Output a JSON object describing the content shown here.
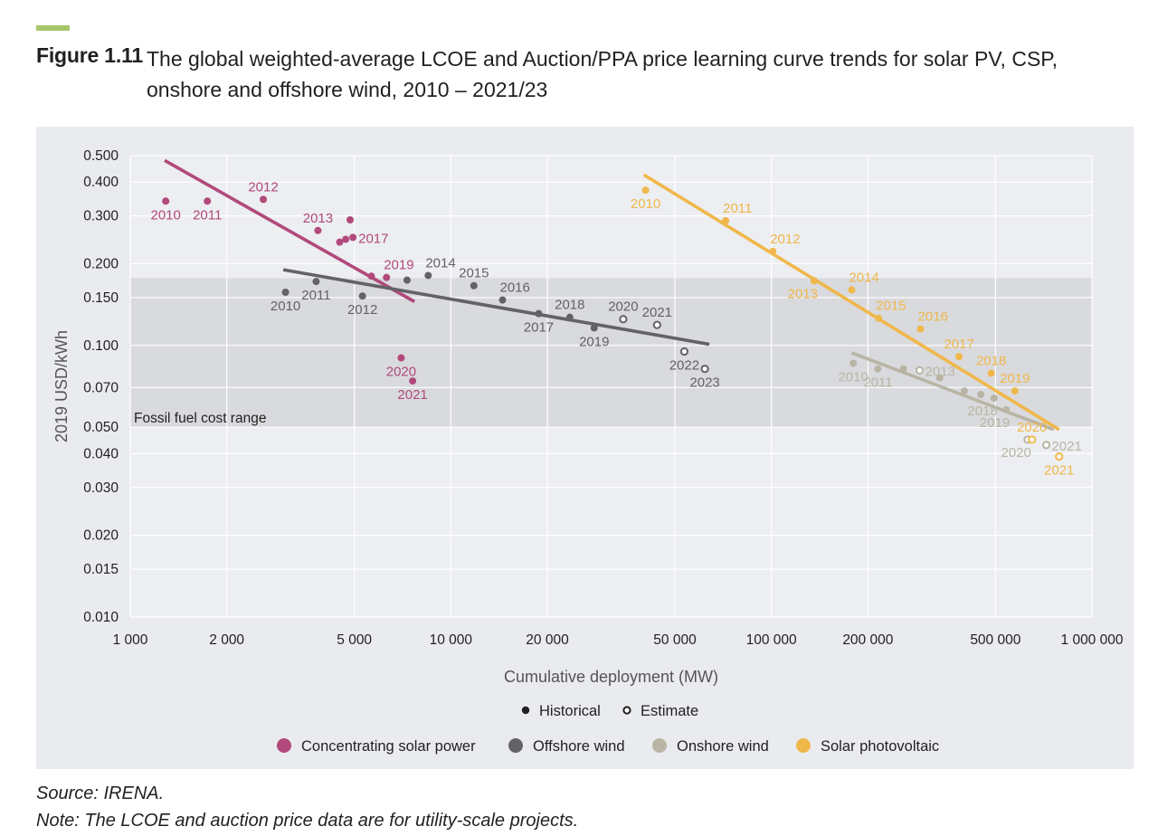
{
  "figure": {
    "label": "Figure 1.11",
    "title": "The global weighted-average LCOE and Auction/PPA price learning curve trends for solar PV, CSP, onshore and offshore wind, 2010 – 2021/23",
    "accent_color": "#a7c66c"
  },
  "chart_data": {
    "type": "scatter",
    "x_scale": "log",
    "y_scale": "log",
    "xlabel": "Cumulative deployment (MW)",
    "ylabel": "2019 USD/kWh",
    "xlim": [
      1000,
      1000000
    ],
    "ylim": [
      0.01,
      0.5
    ],
    "x_ticks": [
      {
        "v": 1000,
        "label": "1 000"
      },
      {
        "v": 2000,
        "label": "2 000"
      },
      {
        "v": 5000,
        "label": "5 000"
      },
      {
        "v": 10000,
        "label": "10 000"
      },
      {
        "v": 20000,
        "label": "20 000"
      },
      {
        "v": 50000,
        "label": "50 000"
      },
      {
        "v": 100000,
        "label": "100 000"
      },
      {
        "v": 200000,
        "label": "200 000"
      },
      {
        "v": 500000,
        "label": "500 000"
      },
      {
        "v": 1000000,
        "label": "1 000 000"
      }
    ],
    "y_ticks": [
      {
        "v": 0.5,
        "label": "0.500"
      },
      {
        "v": 0.4,
        "label": "0.400"
      },
      {
        "v": 0.3,
        "label": "0.300"
      },
      {
        "v": 0.2,
        "label": "0.200"
      },
      {
        "v": 0.15,
        "label": "0.150"
      },
      {
        "v": 0.1,
        "label": "0.100"
      },
      {
        "v": 0.07,
        "label": "0.070"
      },
      {
        "v": 0.05,
        "label": "0.050"
      },
      {
        "v": 0.04,
        "label": "0.040"
      },
      {
        "v": 0.03,
        "label": "0.030"
      },
      {
        "v": 0.02,
        "label": "0.020"
      },
      {
        "v": 0.015,
        "label": "0.015"
      },
      {
        "v": 0.01,
        "label": "0.010"
      }
    ],
    "fossil_band": {
      "label": "Fossil fuel cost range",
      "min": 0.05,
      "max": 0.177
    },
    "series": [
      {
        "name": "Concentrating solar power",
        "color": "#b1497b",
        "trend": [
          [
            1280,
            0.48
          ],
          [
            7700,
            0.145
          ]
        ],
        "points": [
          {
            "x": 1290,
            "y": 0.34,
            "label": "2010",
            "lpos": "below",
            "estimate": false
          },
          {
            "x": 1740,
            "y": 0.34,
            "label": "2011",
            "lpos": "below",
            "estimate": false
          },
          {
            "x": 2600,
            "y": 0.345,
            "label": "2012",
            "lpos": "above",
            "estimate": false
          },
          {
            "x": 3850,
            "y": 0.265,
            "label": "2013",
            "lpos": "above",
            "estimate": false
          },
          {
            "x": 4850,
            "y": 0.29,
            "label": "",
            "lpos": "none",
            "estimate": false
          },
          {
            "x": 4500,
            "y": 0.24,
            "label": "",
            "lpos": "none",
            "estimate": false
          },
          {
            "x": 4700,
            "y": 0.246,
            "label": "",
            "lpos": "none",
            "estimate": false
          },
          {
            "x": 4950,
            "y": 0.25,
            "label": "2017",
            "lpos": "right",
            "estimate": false
          },
          {
            "x": 5650,
            "y": 0.18,
            "label": "",
            "lpos": "none",
            "estimate": false
          },
          {
            "x": 6300,
            "y": 0.178,
            "label": "2019",
            "lpos": "aboveright",
            "estimate": false
          },
          {
            "x": 7000,
            "y": 0.09,
            "label": "2020",
            "lpos": "below",
            "estimate": false
          },
          {
            "x": 7600,
            "y": 0.074,
            "label": "2021",
            "lpos": "below",
            "estimate": false
          }
        ]
      },
      {
        "name": "Offshore wind",
        "color": "#636267",
        "trend": [
          [
            3000,
            0.19
          ],
          [
            64000,
            0.101
          ]
        ],
        "points": [
          {
            "x": 3050,
            "y": 0.157,
            "label": "2010",
            "lpos": "below",
            "estimate": false
          },
          {
            "x": 3800,
            "y": 0.172,
            "label": "2011",
            "lpos": "below",
            "estimate": false
          },
          {
            "x": 5300,
            "y": 0.152,
            "label": "2012",
            "lpos": "below",
            "estimate": false
          },
          {
            "x": 7300,
            "y": 0.174,
            "label": "",
            "lpos": "none",
            "estimate": false
          },
          {
            "x": 8500,
            "y": 0.181,
            "label": "2014",
            "lpos": "aboveright",
            "estimate": false
          },
          {
            "x": 11800,
            "y": 0.166,
            "label": "2015",
            "lpos": "above",
            "estimate": false
          },
          {
            "x": 14500,
            "y": 0.147,
            "label": "2016",
            "lpos": "aboveright",
            "estimate": false
          },
          {
            "x": 18800,
            "y": 0.131,
            "label": "2017",
            "lpos": "below",
            "estimate": false
          },
          {
            "x": 23500,
            "y": 0.127,
            "label": "2018",
            "lpos": "above",
            "estimate": false
          },
          {
            "x": 28000,
            "y": 0.116,
            "label": "2019",
            "lpos": "below",
            "estimate": false
          },
          {
            "x": 34500,
            "y": 0.125,
            "label": "2020",
            "lpos": "above",
            "estimate": true
          },
          {
            "x": 44000,
            "y": 0.119,
            "label": "2021",
            "lpos": "above",
            "estimate": true
          },
          {
            "x": 53500,
            "y": 0.095,
            "label": "2022",
            "lpos": "below",
            "estimate": true
          },
          {
            "x": 62000,
            "y": 0.082,
            "label": "2023",
            "lpos": "below",
            "estimate": true
          }
        ]
      },
      {
        "name": "Onshore wind",
        "color": "#b9b5a5",
        "trend": [
          [
            178000,
            0.094
          ],
          [
            760000,
            0.049
          ]
        ],
        "points": [
          {
            "x": 180000,
            "y": 0.086,
            "label": "2010",
            "lpos": "below",
            "estimate": false
          },
          {
            "x": 215000,
            "y": 0.082,
            "label": "2011",
            "lpos": "below",
            "estimate": false
          },
          {
            "x": 258000,
            "y": 0.082,
            "label": "",
            "lpos": "none",
            "estimate": false
          },
          {
            "x": 290000,
            "y": 0.081,
            "label": "2013",
            "lpos": "right",
            "estimate": true
          },
          {
            "x": 335000,
            "y": 0.076,
            "label": "",
            "lpos": "none",
            "estimate": false
          },
          {
            "x": 400000,
            "y": 0.068,
            "label": "",
            "lpos": "none",
            "estimate": false
          },
          {
            "x": 450000,
            "y": 0.066,
            "label": "",
            "lpos": "none",
            "estimate": false
          },
          {
            "x": 495000,
            "y": 0.064,
            "label": "2018",
            "lpos": "belowleft",
            "estimate": false
          },
          {
            "x": 540000,
            "y": 0.058,
            "label": "2019",
            "lpos": "belowleft",
            "estimate": false
          },
          {
            "x": 630000,
            "y": 0.045,
            "label": "2020",
            "lpos": "belowleft",
            "estimate": true
          },
          {
            "x": 720000,
            "y": 0.043,
            "label": "2021",
            "lpos": "right",
            "estimate": true
          }
        ]
      },
      {
        "name": "Solar photovoltaic",
        "color": "#f0b74b",
        "trend": [
          [
            40000,
            0.425
          ],
          [
            790000,
            0.049
          ]
        ],
        "points": [
          {
            "x": 40500,
            "y": 0.373,
            "label": "2010",
            "lpos": "below",
            "estimate": false
          },
          {
            "x": 72000,
            "y": 0.288,
            "label": "2011",
            "lpos": "aboveright",
            "estimate": false
          },
          {
            "x": 101000,
            "y": 0.222,
            "label": "2012",
            "lpos": "aboveright",
            "estimate": false
          },
          {
            "x": 136000,
            "y": 0.173,
            "label": "2013",
            "lpos": "belowleft",
            "estimate": false
          },
          {
            "x": 178000,
            "y": 0.16,
            "label": "2014",
            "lpos": "aboveright",
            "estimate": false
          },
          {
            "x": 216000,
            "y": 0.126,
            "label": "2015",
            "lpos": "aboveright",
            "estimate": false
          },
          {
            "x": 292000,
            "y": 0.115,
            "label": "2016",
            "lpos": "aboveright",
            "estimate": false
          },
          {
            "x": 385000,
            "y": 0.091,
            "label": "2017",
            "lpos": "above",
            "estimate": false
          },
          {
            "x": 485000,
            "y": 0.079,
            "label": "2018",
            "lpos": "above",
            "estimate": false
          },
          {
            "x": 575000,
            "y": 0.068,
            "label": "2019",
            "lpos": "above",
            "estimate": false
          },
          {
            "x": 650000,
            "y": 0.045,
            "label": "2020",
            "lpos": "above",
            "estimate": true
          },
          {
            "x": 790000,
            "y": 0.039,
            "label": "2021",
            "lpos": "below",
            "estimate": true
          }
        ]
      }
    ],
    "marker_legend": [
      {
        "label": "Historical",
        "type": "filled"
      },
      {
        "label": "Estimate",
        "type": "hollow"
      }
    ]
  },
  "footer": {
    "source": "Source: IRENA.",
    "note": "Note: The LCOE and auction price data are for utility-scale projects."
  }
}
